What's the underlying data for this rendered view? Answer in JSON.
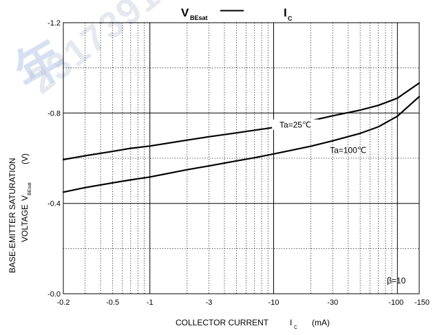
{
  "chart_data": {
    "type": "line",
    "title_main": "V",
    "title_main_sub": "BEsat",
    "title_dash": "—",
    "title_second": "I",
    "title_second_sub": "C",
    "xlabel_main": "COLLECTOR CURRENT",
    "xlabel_sym": "I",
    "xlabel_sym_sub": "C",
    "xlabel_unit": "(mA)",
    "ylabel_line1": "BASE-EMITTER SATURATION",
    "ylabel_line2_text": "VOLTAGE",
    "ylabel_sym": "V",
    "ylabel_sym_sub": "BEsat",
    "ylabel_unit": "(V)",
    "x_scale": "log",
    "x_direction": "negative",
    "xlim": [
      -0.2,
      -150
    ],
    "ylim": [
      0.0,
      -1.2
    ],
    "x_ticks": [
      {
        "value": -0.2,
        "label": "-0.2"
      },
      {
        "value": -0.5,
        "label": "-0.5"
      },
      {
        "value": -1,
        "label": "-1"
      },
      {
        "value": -3,
        "label": "-3"
      },
      {
        "value": -10,
        "label": "-10"
      },
      {
        "value": -30,
        "label": "-30"
      },
      {
        "value": -100,
        "label": "-100"
      },
      {
        "value": -150,
        "label": "-150"
      }
    ],
    "y_ticks": [
      {
        "value": -1.2,
        "label": "-1.2"
      },
      {
        "value": -0.8,
        "label": "-0.8"
      },
      {
        "value": -0.4,
        "label": "-0.4"
      },
      {
        "value": 0.0,
        "label": "-0.0"
      }
    ],
    "grid": true,
    "condition_note": "β=10",
    "series": [
      {
        "name": "Ta=25℃",
        "x": [
          -0.2,
          -0.3,
          -0.5,
          -0.7,
          -1,
          -2,
          -3,
          -5,
          -7,
          -10,
          -20,
          -30,
          -50,
          -70,
          -100,
          -150
        ],
        "y": [
          -0.594,
          -0.611,
          -0.63,
          -0.644,
          -0.654,
          -0.68,
          -0.695,
          -0.712,
          -0.724,
          -0.736,
          -0.766,
          -0.788,
          -0.813,
          -0.834,
          -0.866,
          -0.933
        ]
      },
      {
        "name": "Ta=100℃",
        "x": [
          -0.2,
          -0.3,
          -0.5,
          -0.7,
          -1,
          -2,
          -3,
          -5,
          -7,
          -10,
          -20,
          -30,
          -50,
          -70,
          -100,
          -150
        ],
        "y": [
          -0.45,
          -0.47,
          -0.491,
          -0.504,
          -0.517,
          -0.549,
          -0.566,
          -0.588,
          -0.602,
          -0.619,
          -0.653,
          -0.677,
          -0.71,
          -0.739,
          -0.786,
          -0.873
        ]
      }
    ],
    "annotations": [
      {
        "text": "Ta=25℃",
        "series": 0
      },
      {
        "text": "Ta=100℃",
        "series": 1
      }
    ]
  },
  "watermark": {
    "text": "2317391",
    "glyph": "年"
  }
}
